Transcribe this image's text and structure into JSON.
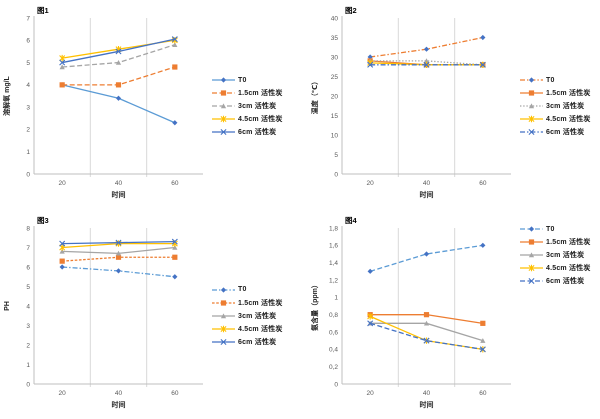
{
  "page": {
    "background": "#ffffff"
  },
  "colors": {
    "t0_line": "#5B9BD5",
    "t0_marker": "#4472C4",
    "orange": "#ED7D31",
    "gray": "#A5A5A5",
    "yellow": "#FFC000",
    "dark_blue": "#4472C4",
    "gridline": "#D9D9D9",
    "axis": "#BFBFBF"
  },
  "chart_data": [
    {
      "type": "line",
      "title": "图1",
      "xlabel": "时间",
      "ylabel": "溶解氧 mg/L",
      "x": [
        20,
        40,
        60
      ],
      "xlim": [
        10,
        70
      ],
      "ymax": 7,
      "yticks": [
        "0",
        "1",
        "2",
        "3",
        "4",
        "5",
        "6",
        "7"
      ],
      "gridx": [
        30,
        50
      ],
      "legend_position": "right-center",
      "series": [
        {
          "name": "T0",
          "color": "#5B9BD5",
          "marker": "diamond",
          "marker_color": "#4472C4",
          "dash": "solid",
          "values": [
            4.0,
            3.4,
            2.3
          ]
        },
        {
          "name": "1.5cm 活性炭",
          "color": "#ED7D31",
          "marker": "square",
          "dash": "dash",
          "values": [
            4.0,
            4.0,
            4.8
          ]
        },
        {
          "name": "3cm 活性炭",
          "color": "#A5A5A5",
          "marker": "triangle",
          "dash": "dash",
          "values": [
            4.8,
            5.0,
            5.8
          ]
        },
        {
          "name": "4.5cm 活性炭",
          "color": "#FFC000",
          "marker": "star",
          "dash": "solid",
          "values": [
            5.2,
            5.6,
            6.0
          ]
        },
        {
          "name": "6cm 活性炭",
          "color": "#4472C4",
          "marker": "x",
          "dash": "solid",
          "values": [
            5.0,
            5.5,
            6.05
          ]
        }
      ]
    },
    {
      "type": "line",
      "title": "图2",
      "xlabel": "时间",
      "ylabel": "温度（℃）",
      "x": [
        20,
        40,
        60
      ],
      "xlim": [
        10,
        70
      ],
      "ymax": 40,
      "yticks": [
        "0",
        "5",
        "10",
        "15",
        "20",
        "25",
        "30",
        "35",
        "40"
      ],
      "gridx": [
        30,
        50
      ],
      "legend_position": "right-center",
      "series": [
        {
          "name": "T0",
          "color": "#ED7D31",
          "marker": "diamond",
          "marker_color": "#4472C4",
          "dash": "dashdot",
          "values": [
            30,
            32,
            35
          ]
        },
        {
          "name": "1.5cm 活性炭",
          "color": "#ED7D31",
          "marker": "square",
          "dash": "solid",
          "values": [
            29,
            28,
            28
          ]
        },
        {
          "name": "3cm 活性炭",
          "color": "#A5A5A5",
          "marker": "triangle",
          "dash": "dot",
          "values": [
            29,
            29,
            28
          ]
        },
        {
          "name": "4.5cm 活性炭",
          "color": "#FFC000",
          "marker": "star",
          "dash": "solid",
          "values": [
            28.5,
            28,
            28
          ]
        },
        {
          "name": "6cm 活性炭",
          "color": "#4472C4",
          "marker": "x",
          "dash": "dashdot",
          "values": [
            28,
            28,
            28
          ]
        }
      ]
    },
    {
      "type": "line",
      "title": "图3",
      "xlabel": "时间",
      "ylabel": "PH",
      "x": [
        20,
        40,
        60
      ],
      "xlim": [
        10,
        70
      ],
      "ymax": 8,
      "yticks": [
        "0",
        "1",
        "2",
        "3",
        "4",
        "5",
        "6",
        "7",
        "8"
      ],
      "gridx": [
        30,
        50
      ],
      "legend_position": "right-center",
      "series": [
        {
          "name": "T0",
          "color": "#5B9BD5",
          "marker": "diamond",
          "marker_color": "#4472C4",
          "dash": "dashdot",
          "values": [
            6.0,
            5.8,
            5.5
          ]
        },
        {
          "name": "1.5cm 活性炭",
          "color": "#ED7D31",
          "marker": "square",
          "dash": "shortdash",
          "values": [
            6.3,
            6.5,
            6.5
          ]
        },
        {
          "name": "3cm 活性炭",
          "color": "#A5A5A5",
          "marker": "triangle",
          "dash": "solid",
          "values": [
            6.8,
            6.7,
            7.0
          ]
        },
        {
          "name": "4.5cm 活性炭",
          "color": "#FFC000",
          "marker": "star",
          "dash": "solid",
          "values": [
            7.0,
            7.2,
            7.2
          ]
        },
        {
          "name": "6cm 活性炭",
          "color": "#4472C4",
          "marker": "x",
          "dash": "solid",
          "values": [
            7.2,
            7.25,
            7.3
          ]
        }
      ]
    },
    {
      "type": "line",
      "title": "图4",
      "xlabel": "时间",
      "ylabel": "氨含量（ppm）",
      "x": [
        20,
        40,
        60
      ],
      "xlim": [
        10,
        70
      ],
      "ymax": 1.8,
      "yticks": [
        "0",
        "0,2",
        "0,4",
        "0,6",
        "0,8",
        "1",
        "1,2",
        "1,4",
        "1,6",
        "1,8"
      ],
      "gridx": [
        30,
        50
      ],
      "legend_position": "right-top",
      "series": [
        {
          "name": "T0",
          "color": "#5B9BD5",
          "marker": "diamond",
          "marker_color": "#4472C4",
          "dash": "dash",
          "values": [
            1.3,
            1.5,
            1.6
          ]
        },
        {
          "name": "1.5cm 活性炭",
          "color": "#ED7D31",
          "marker": "square",
          "dash": "solid",
          "values": [
            0.8,
            0.8,
            0.7
          ]
        },
        {
          "name": "3cm 活性炭",
          "color": "#A5A5A5",
          "marker": "triangle",
          "dash": "solid",
          "values": [
            0.7,
            0.7,
            0.5
          ]
        },
        {
          "name": "4.5cm 活性炭",
          "color": "#FFC000",
          "marker": "star",
          "dash": "solid",
          "values": [
            0.78,
            0.5,
            0.4
          ]
        },
        {
          "name": "6cm 活性炭",
          "color": "#4472C4",
          "marker": "x",
          "dash": "dash",
          "values": [
            0.7,
            0.5,
            0.4
          ]
        }
      ]
    }
  ]
}
